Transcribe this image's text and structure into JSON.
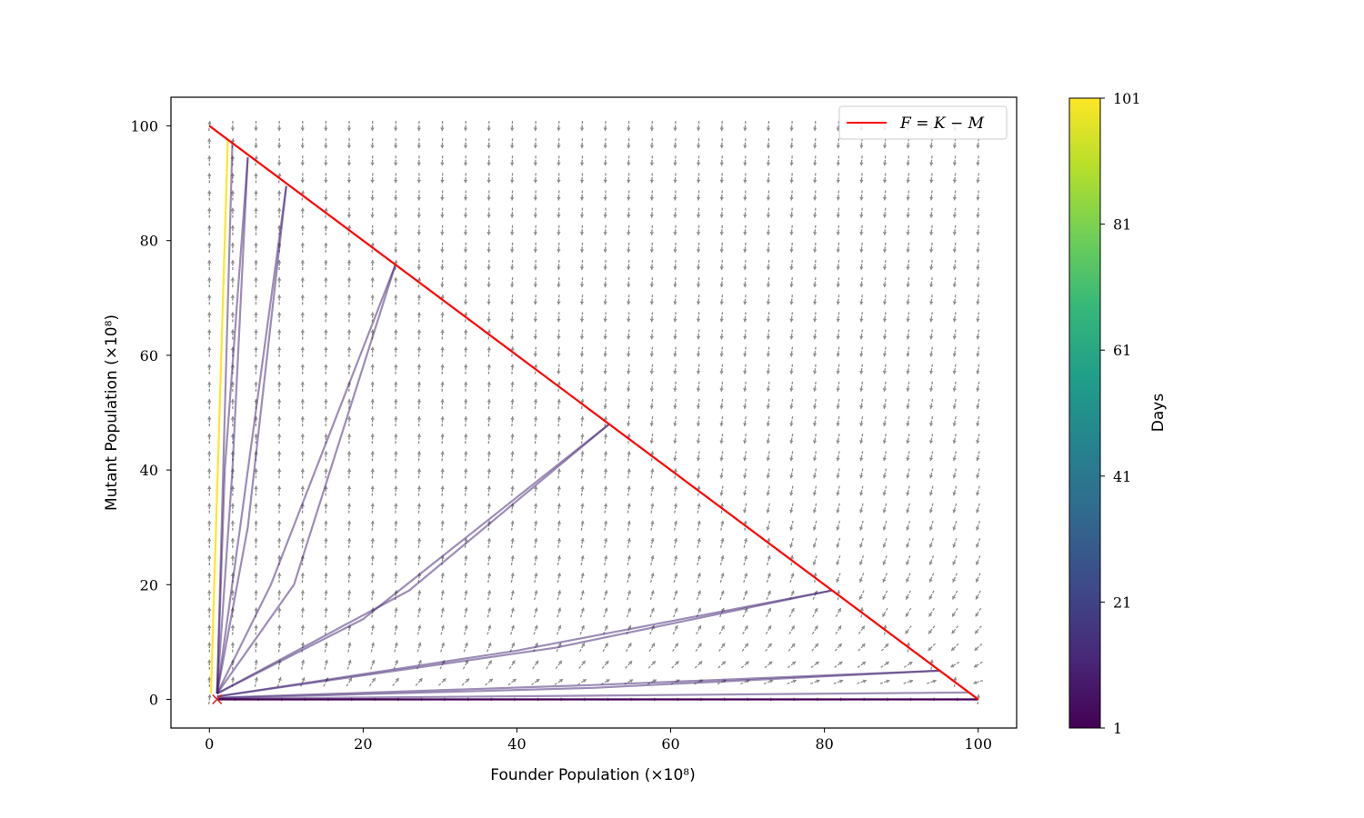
{
  "chart_data": {
    "type": "line",
    "xlabel": "Founder Population (×10⁸)",
    "ylabel": "Mutant Population (×10⁸)",
    "xlim": [
      -5,
      105
    ],
    "ylim": [
      -5,
      105
    ],
    "xticks": [
      0,
      20,
      40,
      60,
      80,
      100
    ],
    "yticks": [
      0,
      20,
      40,
      60,
      80,
      100
    ],
    "xtick_labels": [
      "0",
      "20",
      "40",
      "60",
      "80",
      "100"
    ],
    "ytick_labels": [
      "0",
      "20",
      "40",
      "60",
      "80",
      "100"
    ],
    "grid": false,
    "legend": {
      "placement": "top-right",
      "entries": [
        "F = K − M"
      ]
    },
    "carrying_capacity_line": {
      "name": "F = K − M",
      "color": "#ff0000",
      "x": [
        0,
        100
      ],
      "y": [
        100,
        0
      ]
    },
    "start_point": {
      "x": 1,
      "y": 0,
      "color": "#d62728",
      "marker": "x"
    },
    "vector_field": {
      "color": "#8c8c8c",
      "x_range": [
        0,
        100
      ],
      "y_range": [
        0,
        100
      ],
      "grid_count": 34
    },
    "trajectories": [
      {
        "path": [
          [
            1,
            1
          ],
          [
            5,
            30
          ],
          [
            10,
            89.5
          ]
        ],
        "color": "#3b1c6e",
        "opacity": 0.5
      },
      {
        "path": [
          [
            1,
            1
          ],
          [
            4,
            30
          ],
          [
            10,
            89.5
          ]
        ],
        "color": "#3b1c6e",
        "opacity": 0.5
      },
      {
        "path": [
          [
            1,
            1
          ],
          [
            3,
            40
          ],
          [
            5,
            94.5
          ]
        ],
        "color": "#3b1c6e",
        "opacity": 0.5
      },
      {
        "path": [
          [
            1,
            1
          ],
          [
            2,
            40
          ],
          [
            5,
            94.5
          ]
        ],
        "color": "#3b1c6e",
        "opacity": 0.5
      },
      {
        "path": [
          [
            1,
            1
          ],
          [
            2,
            50
          ],
          [
            3,
            97.3
          ]
        ],
        "color": "#3b1c6e",
        "opacity": 0.5
      },
      {
        "path": [
          [
            1,
            1
          ],
          [
            8,
            20
          ],
          [
            24.2,
            75.8
          ]
        ],
        "color": "#3b1c6e",
        "opacity": 0.5
      },
      {
        "path": [
          [
            1,
            1
          ],
          [
            11,
            20
          ],
          [
            24.2,
            75.8
          ]
        ],
        "color": "#3b1c6e",
        "opacity": 0.5
      },
      {
        "path": [
          [
            1,
            1
          ],
          [
            20,
            14
          ],
          [
            52,
            48
          ]
        ],
        "color": "#3b1c6e",
        "opacity": 0.5
      },
      {
        "path": [
          [
            1,
            1
          ],
          [
            26,
            19
          ],
          [
            52,
            48
          ]
        ],
        "color": "#3b1c6e",
        "opacity": 0.5
      },
      {
        "path": [
          [
            1,
            0.5
          ],
          [
            40,
            8.5
          ],
          [
            81,
            19
          ]
        ],
        "color": "#3b1c6e",
        "opacity": 0.5
      },
      {
        "path": [
          [
            1,
            0.5
          ],
          [
            45,
            9
          ],
          [
            81,
            19
          ]
        ],
        "color": "#3b1c6e",
        "opacity": 0.5
      },
      {
        "path": [
          [
            1,
            0.3
          ],
          [
            50,
            2.5
          ],
          [
            95,
            5
          ]
        ],
        "color": "#3b1c6e",
        "opacity": 0.5
      },
      {
        "path": [
          [
            1,
            0.2
          ],
          [
            50,
            2
          ],
          [
            95,
            5
          ]
        ],
        "color": "#3b1c6e",
        "opacity": 0.5
      },
      {
        "path": [
          [
            1,
            0.1
          ],
          [
            98.8,
            1.2
          ]
        ],
        "color": "#3b1c6e",
        "opacity": 0.5
      },
      {
        "path": [
          [
            1,
            0
          ],
          [
            100,
            0
          ]
        ],
        "color": "#440154",
        "opacity": 1.0
      },
      {
        "path": [
          [
            0.2,
            1
          ],
          [
            2.4,
            97.8
          ]
        ],
        "color": "#fde725",
        "opacity": 1.0
      }
    ],
    "colorbar": {
      "label": "Days",
      "ticks": [
        1,
        21,
        41,
        61,
        81,
        101
      ],
      "tick_labels": [
        "1",
        "21",
        "41",
        "61",
        "81",
        "101"
      ],
      "range": [
        1,
        101
      ],
      "colormap": [
        "#440154",
        "#482878",
        "#3e4989",
        "#31688e",
        "#26828e",
        "#1f9e89",
        "#35b779",
        "#6ece58",
        "#b5de2b",
        "#fde725"
      ]
    }
  }
}
